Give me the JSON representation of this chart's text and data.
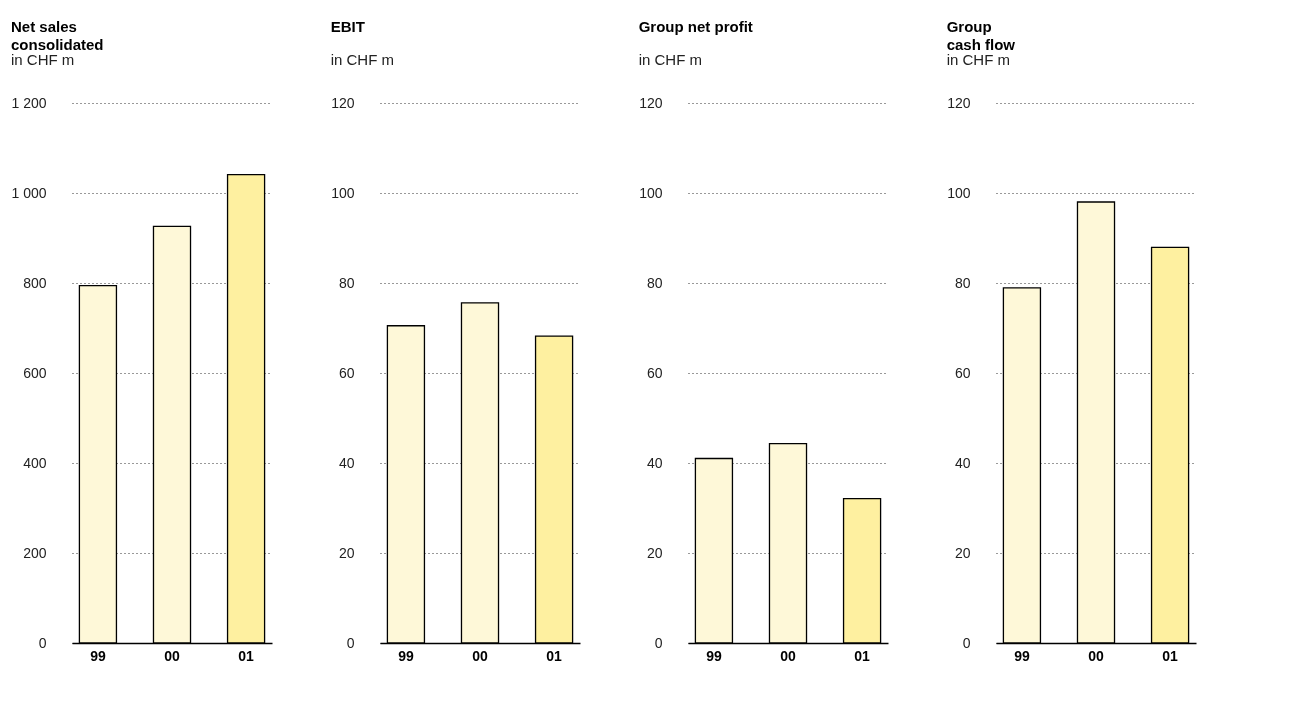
{
  "chart_data": [
    {
      "type": "bar",
      "title": "Net sales\nconsolidated",
      "subtitle": "in CHF m",
      "categories": [
        "99",
        "00",
        "01"
      ],
      "values": [
        794,
        926,
        1041
      ],
      "colors": [
        "#fef8d8",
        "#fef8d8",
        "#fef0a0"
      ],
      "ylim": [
        0,
        1200
      ],
      "yticks": [
        0,
        200,
        400,
        600,
        800,
        {
          "value": 1000,
          "label": "1 000"
        },
        {
          "value": 1200,
          "label": "1 200"
        }
      ],
      "grid": "y"
    },
    {
      "type": "bar",
      "title": "EBIT",
      "subtitle": "in CHF m",
      "categories": [
        "99",
        "00",
        "01"
      ],
      "values": [
        70.5,
        75.6,
        68.2
      ],
      "colors": [
        "#fef8d8",
        "#fef8d8",
        "#fef0a0"
      ],
      "ylim": [
        0,
        120
      ],
      "yticks": [
        0,
        20,
        40,
        60,
        80,
        100,
        120
      ],
      "grid": "y"
    },
    {
      "type": "bar",
      "title": "Group net profit",
      "subtitle": "in CHF m",
      "categories": [
        "99",
        "00",
        "01"
      ],
      "values": [
        41.0,
        44.3,
        32.1
      ],
      "colors": [
        "#fef8d8",
        "#fef8d8",
        "#fef0a0"
      ],
      "ylim": [
        0,
        120
      ],
      "yticks": [
        0,
        20,
        40,
        60,
        80,
        100,
        120
      ],
      "grid": "y"
    },
    {
      "type": "bar",
      "title": "Group\ncash flow",
      "subtitle": "in CHF m",
      "categories": [
        "99",
        "00",
        "01"
      ],
      "values": [
        78.9,
        98.0,
        87.9
      ],
      "colors": [
        "#fef8d8",
        "#fef8d8",
        "#fef0a0"
      ],
      "ylim": [
        0,
        120
      ],
      "yticks": [
        0,
        20,
        40,
        60,
        80,
        100,
        120
      ],
      "grid": "y"
    }
  ]
}
